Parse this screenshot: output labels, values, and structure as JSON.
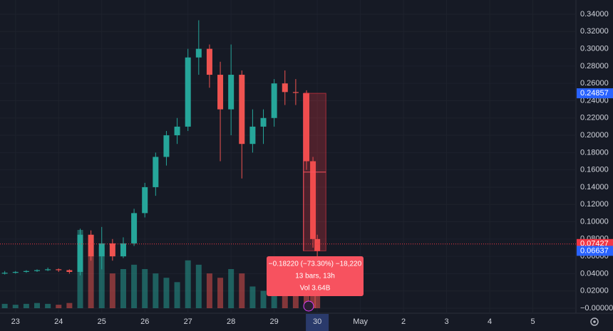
{
  "chart_data": {
    "type": "candlestick",
    "background": "#161a25",
    "up_color": "#26a69a",
    "down_color": "#ef5350",
    "xlim": [
      22.64,
      36
    ],
    "ylim": [
      0,
      0.34
    ],
    "xticks": [
      23,
      24,
      25,
      26,
      27,
      28,
      29,
      30,
      {
        "value": 31,
        "label": "May"
      },
      {
        "value": 32,
        "label": "2"
      },
      {
        "value": 33,
        "label": "3"
      },
      {
        "value": 34,
        "label": "4"
      },
      {
        "value": 35,
        "label": "5"
      }
    ],
    "highlighted_xtick": 7,
    "yticks": [
      {
        "value": 0,
        "label": "−0.00000"
      },
      {
        "value": 0.02,
        "label": "0.02000"
      },
      {
        "value": 0.04,
        "label": "0.04000"
      },
      {
        "value": 0.06,
        "label": "0.06000"
      },
      {
        "value": 0.08,
        "label": "0.08000"
      },
      {
        "value": 0.1,
        "label": "0.10000"
      },
      {
        "value": 0.12,
        "label": "0.12000"
      },
      {
        "value": 0.14,
        "label": "0.14000"
      },
      {
        "value": 0.16,
        "label": "0.16000"
      },
      {
        "value": 0.18,
        "label": "0.18000"
      },
      {
        "value": 0.2,
        "label": "0.20000"
      },
      {
        "value": 0.22,
        "label": "0.22000"
      },
      {
        "value": 0.24,
        "label": "0.24000"
      },
      {
        "value": 0.26,
        "label": "0.26000"
      },
      {
        "value": 0.28,
        "label": "0.28000"
      },
      {
        "value": 0.3,
        "label": "0.30000"
      },
      {
        "value": 0.32,
        "label": "0.32000"
      },
      {
        "value": 0.34,
        "label": "0.34000"
      }
    ],
    "x": [
      22.75,
      23.0,
      23.25,
      23.5,
      23.75,
      24.0,
      24.25,
      24.5,
      24.75,
      25.0,
      25.25,
      25.5,
      25.75,
      26.0,
      26.25,
      26.5,
      26.75,
      27.0,
      27.25,
      27.5,
      27.75,
      28.0,
      28.25,
      28.5,
      28.75,
      29.0,
      29.25,
      29.5,
      29.75,
      29.9,
      30.0
    ],
    "open": [
      0.04,
      0.041,
      0.042,
      0.043,
      0.044,
      0.045,
      0.044,
      0.042,
      0.085,
      0.06,
      0.075,
      0.06,
      0.075,
      0.11,
      0.14,
      0.175,
      0.2,
      0.21,
      0.29,
      0.3,
      0.27,
      0.23,
      0.27,
      0.19,
      0.21,
      0.22,
      0.26,
      0.25,
      0.249,
      0.17,
      0.08
    ],
    "high": [
      0.043,
      0.043,
      0.044,
      0.045,
      0.047,
      0.046,
      0.045,
      0.092,
      0.09,
      0.094,
      0.08,
      0.082,
      0.115,
      0.145,
      0.18,
      0.205,
      0.22,
      0.3,
      0.333,
      0.305,
      0.285,
      0.305,
      0.275,
      0.23,
      0.23,
      0.265,
      0.275,
      0.265,
      0.252,
      0.175,
      0.085
    ],
    "low": [
      0.039,
      0.04,
      0.041,
      0.042,
      0.043,
      0.042,
      0.04,
      0.038,
      0.055,
      0.045,
      0.055,
      0.058,
      0.072,
      0.105,
      0.13,
      0.165,
      0.19,
      0.205,
      0.27,
      0.255,
      0.17,
      0.2,
      0.15,
      0.18,
      0.19,
      0.21,
      0.235,
      0.235,
      0.16,
      0.07,
      0.06
    ],
    "close": [
      0.041,
      0.042,
      0.043,
      0.044,
      0.045,
      0.044,
      0.042,
      0.085,
      0.06,
      0.075,
      0.06,
      0.075,
      0.11,
      0.14,
      0.175,
      0.2,
      0.21,
      0.29,
      0.3,
      0.27,
      0.23,
      0.27,
      0.19,
      0.21,
      0.22,
      0.26,
      0.25,
      0.249,
      0.17,
      0.08,
      0.066
    ],
    "volume": [
      5,
      4,
      5,
      6,
      5,
      4,
      6,
      90,
      60,
      70,
      40,
      45,
      50,
      45,
      40,
      35,
      30,
      55,
      50,
      40,
      35,
      45,
      40,
      25,
      20,
      30,
      20,
      15,
      25,
      35,
      20
    ],
    "price_labels": [
      {
        "value": 0.24857,
        "label": "0.24857",
        "color": "#2962ff"
      },
      {
        "value": 0.07427,
        "label": "0.07427",
        "color": "#f23645"
      },
      {
        "value": 0.06637,
        "label": "0.06637",
        "color": "#2962ff"
      }
    ],
    "current_price_line": 0.07427,
    "measure": {
      "x_from": 29.68,
      "x_to": 30.2,
      "y_from": 0.24857,
      "y_to": 0.06637,
      "lines": [
        "−0.18220 (−73.30%) −18,220",
        "13 bars, 13h",
        "Vol 3.64B"
      ]
    }
  }
}
